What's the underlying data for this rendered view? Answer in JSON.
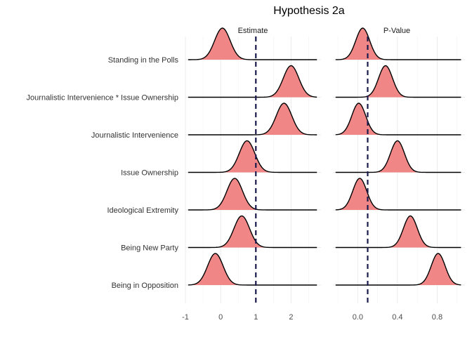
{
  "chart_data": {
    "type": "ridgeline",
    "title": "Hypothesis 2a",
    "categories": [
      "Standing in the Polls",
      "Journalistic Intervenience * Issue Ownership",
      "Journalistic Intervenience",
      "Issue Ownership",
      "Ideological Extremity",
      "Being New Party",
      "Being in Opposition"
    ],
    "panels": [
      {
        "name": "Estimate",
        "xlim": [
          -1.0,
          2.85
        ],
        "ticks": [
          -1,
          0,
          1,
          2
        ],
        "tick_labels": [
          "-1",
          "0",
          "1",
          "2"
        ],
        "reference_line": 1,
        "peaks": [
          0.05,
          2.0,
          1.8,
          0.75,
          0.4,
          0.6,
          -0.15
        ],
        "sd": 0.22
      },
      {
        "name": "P-Value",
        "xlim": [
          -0.25,
          1.08
        ],
        "ticks": [
          0.0,
          0.4,
          0.8
        ],
        "tick_labels": [
          "0.0",
          "0.4",
          "0.8"
        ],
        "reference_line": 0.1,
        "peaks": [
          0.05,
          0.28,
          0.01,
          0.4,
          0.02,
          0.53,
          0.81
        ],
        "sd": 0.07
      }
    ],
    "fill_color": "#f08080",
    "reference_line_color": "#1b1b4d",
    "grid": true,
    "legend": "none"
  }
}
